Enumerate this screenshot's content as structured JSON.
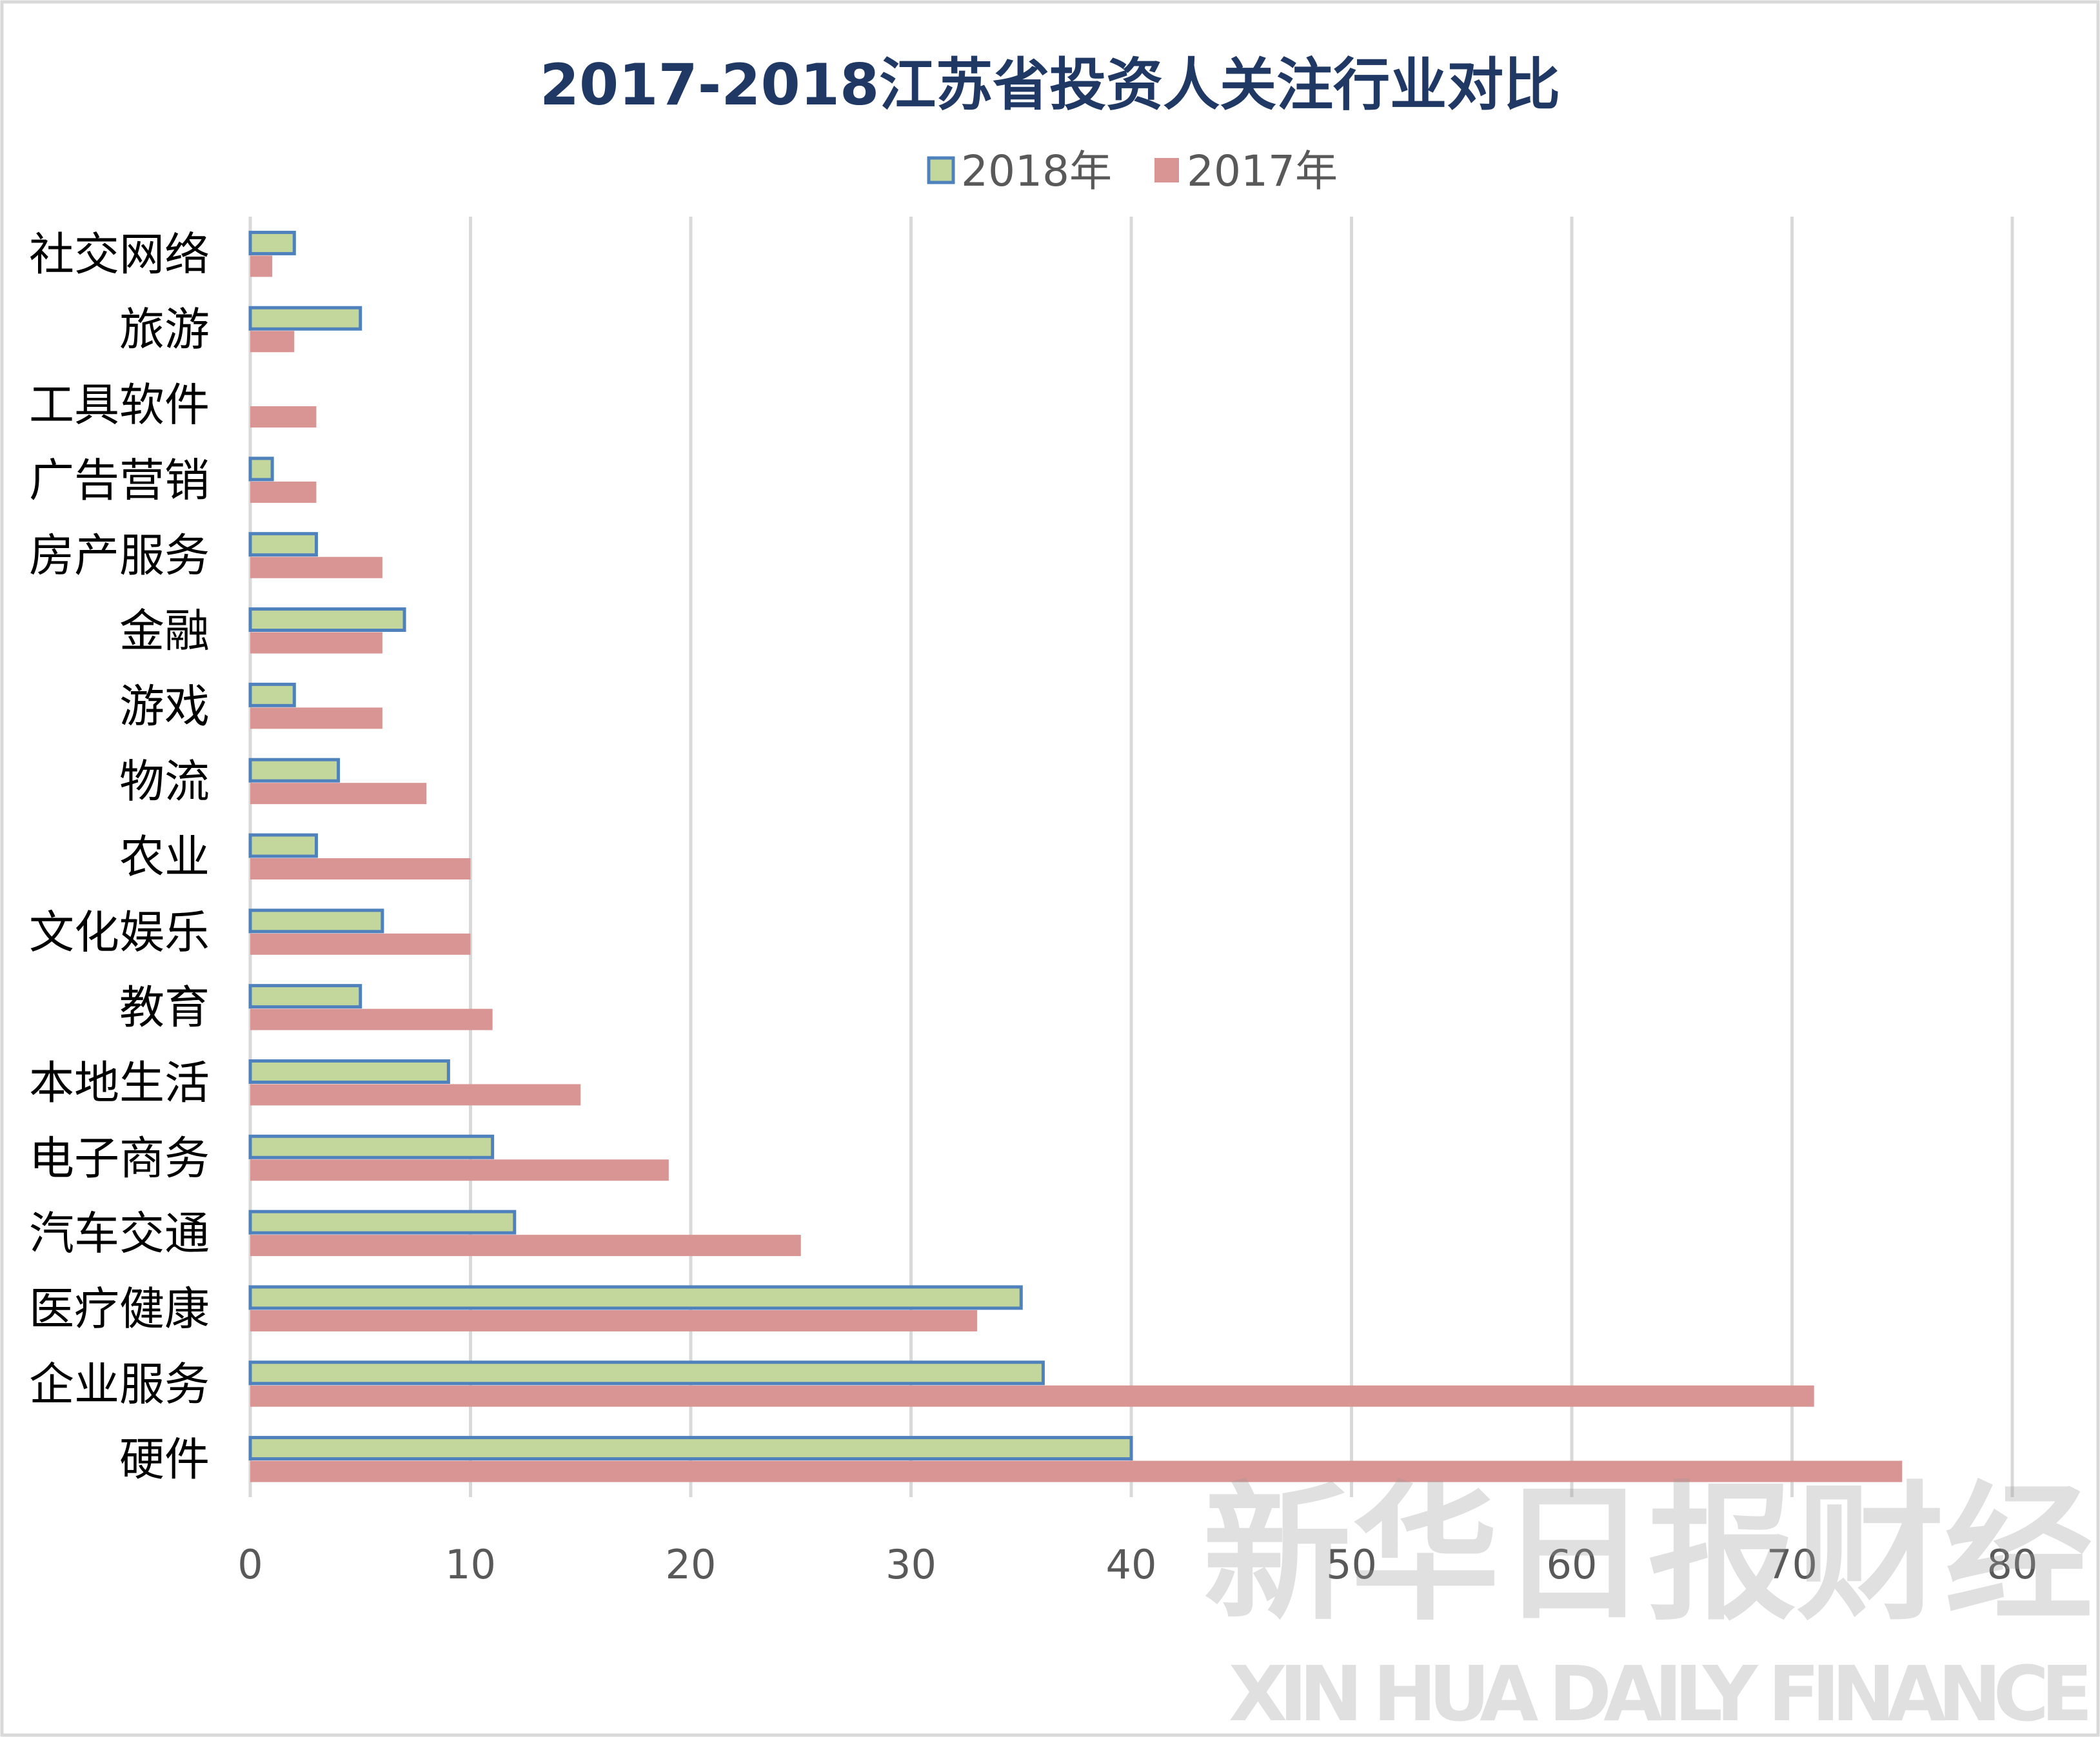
{
  "chart_data": {
    "type": "bar",
    "orientation": "horizontal",
    "title": "2017-2018江苏省投资人关注行业对比",
    "categories": [
      "社交网络",
      "旅游",
      "工具软件",
      "广告营销",
      "房产服务",
      "金融",
      "游戏",
      "物流",
      "农业",
      "文化娱乐",
      "教育",
      "本地生活",
      "电子商务",
      "汽车交通",
      "医疗健康",
      "企业服务",
      "硬件"
    ],
    "series": [
      {
        "name": "2018年",
        "color": "#C3D69B",
        "border": "#4F81BD",
        "values": [
          2,
          5,
          0,
          1,
          3,
          7,
          2,
          4,
          3,
          6,
          5,
          9,
          11,
          12,
          35,
          36,
          40
        ]
      },
      {
        "name": "2017年",
        "color": "#D99594",
        "values": [
          1,
          2,
          3,
          3,
          6,
          6,
          6,
          8,
          10,
          10,
          11,
          15,
          19,
          25,
          33,
          71,
          75
        ]
      }
    ],
    "xlim": [
      0,
      80
    ],
    "xticks": [
      "0",
      "10",
      "20",
      "30",
      "40",
      "50",
      "60",
      "70",
      "80"
    ],
    "grid": "vertical",
    "legend": "top-center",
    "title_color": "#1F3864",
    "grid_color": "#D9D9D9"
  },
  "watermark": {
    "cn": "新华日报财经",
    "en": "XIN HUA DAILY FINANCE"
  }
}
